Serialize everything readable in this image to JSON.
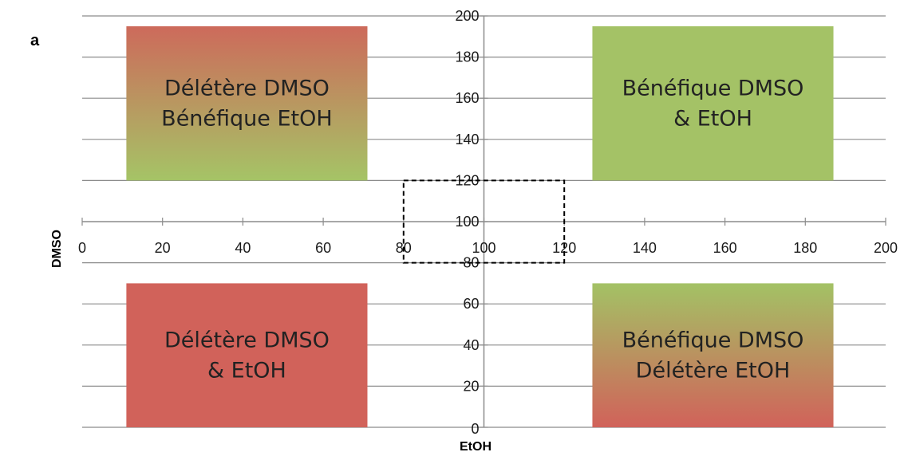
{
  "panel_label": "a",
  "chart_data": {
    "type": "quadrant",
    "xlabel": "EtOH",
    "ylabel": "DMSO",
    "xlim": [
      0,
      200
    ],
    "ylim": [
      0,
      200
    ],
    "x_ticks": [
      0,
      20,
      40,
      60,
      80,
      100,
      120,
      140,
      160,
      180,
      200
    ],
    "y_ticks": [
      0,
      20,
      40,
      60,
      80,
      100,
      120,
      140,
      160,
      180,
      200
    ],
    "crossing": {
      "x": 100,
      "y": 100
    },
    "grid": "horizontal",
    "highlight_region": {
      "x": [
        80,
        120
      ],
      "y": [
        80,
        120
      ],
      "style": "dashed"
    },
    "quadrants": [
      {
        "position": "top-left",
        "lines": [
          "Délétère DMSO",
          "Bénéfique EtOH"
        ],
        "x": [
          11,
          71
        ],
        "y": [
          120,
          195
        ],
        "gradient": [
          "#cd6a5b",
          "#a5c466"
        ]
      },
      {
        "position": "top-right",
        "lines": [
          "Bénéfique DMSO",
          "& EtOH"
        ],
        "x": [
          127,
          187
        ],
        "y": [
          120,
          195
        ],
        "gradient": [
          "#a4c266",
          "#a4c266"
        ]
      },
      {
        "position": "bottom-left",
        "lines": [
          "Délétère DMSO",
          "& EtOH"
        ],
        "x": [
          11,
          71
        ],
        "y": [
          0,
          70
        ],
        "gradient": [
          "#d1625a",
          "#d1625a"
        ]
      },
      {
        "position": "bottom-right",
        "lines": [
          "Bénéfique DMSO",
          "Délétère EtOH"
        ],
        "x": [
          127,
          187
        ],
        "y": [
          0,
          70
        ],
        "gradient": [
          "#a3c265",
          "#d1625a"
        ]
      }
    ]
  }
}
